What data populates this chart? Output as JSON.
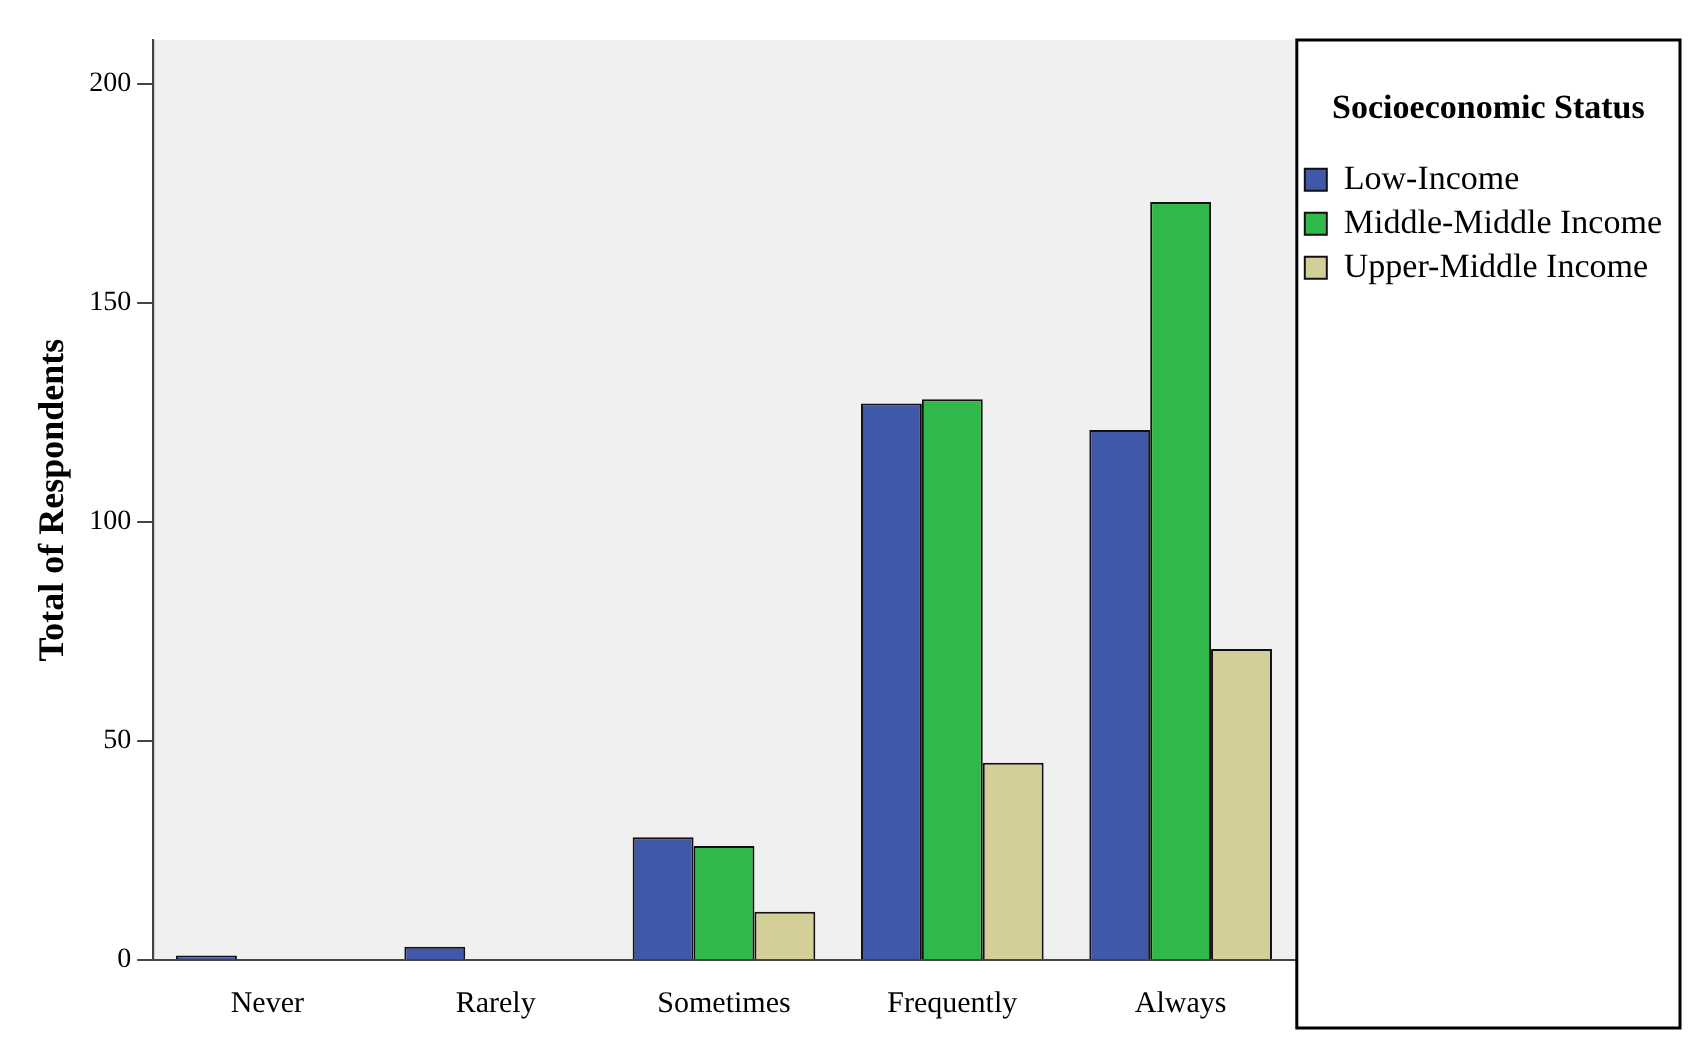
{
  "chart_data": {
    "type": "bar",
    "ylabel": "Total of Respondents",
    "legend_title": "Socioeconomic Status",
    "categories": [
      "Never",
      "Rarely",
      "Sometimes",
      "Frequently",
      "Always"
    ],
    "series": [
      {
        "name": "Low-Income",
        "color": "#3f58a8",
        "values": [
          1,
          3,
          28,
          127,
          121
        ]
      },
      {
        "name": "Middle-Middle Income",
        "color": "#31b84a",
        "values": [
          0,
          0,
          26,
          128,
          173
        ]
      },
      {
        "name": "Upper-Middle Income",
        "color": "#d4cf98",
        "values": [
          0,
          0,
          11,
          45,
          71
        ]
      }
    ],
    "ylim": [
      0,
      210
    ],
    "yticks": [
      0,
      50,
      100,
      150,
      200
    ],
    "grid": false,
    "legend": "top right"
  }
}
